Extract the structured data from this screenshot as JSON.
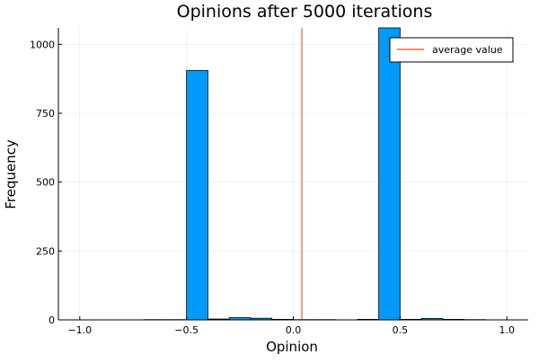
{
  "chart_data": {
    "type": "bar",
    "title": "Opinions after 5000 iterations",
    "xlabel": "Opinion",
    "ylabel": "Frequency",
    "xlim": [
      -1.1,
      1.1
    ],
    "ylim": [
      0,
      1060
    ],
    "x_ticks": [
      -1.0,
      -0.5,
      0.0,
      0.5,
      1.0
    ],
    "x_tick_labels": [
      "−1.0",
      "−0.5",
      "0.0",
      "0.5",
      "1.0"
    ],
    "y_ticks": [
      0,
      250,
      500,
      750,
      1000
    ],
    "y_tick_labels": [
      "0",
      "250",
      "500",
      "750",
      "1000"
    ],
    "grid": true,
    "bin_width": 0.1,
    "bins": [
      {
        "x0": -1.0,
        "x1": -0.9,
        "value": 0
      },
      {
        "x0": -0.9,
        "x1": -0.8,
        "value": 0
      },
      {
        "x0": -0.8,
        "x1": -0.7,
        "value": 0
      },
      {
        "x0": -0.7,
        "x1": -0.6,
        "value": 1
      },
      {
        "x0": -0.6,
        "x1": -0.5,
        "value": 1
      },
      {
        "x0": -0.5,
        "x1": -0.4,
        "value": 905
      },
      {
        "x0": -0.4,
        "x1": -0.3,
        "value": 3
      },
      {
        "x0": -0.3,
        "x1": -0.2,
        "value": 8
      },
      {
        "x0": -0.2,
        "x1": -0.1,
        "value": 6
      },
      {
        "x0": -0.1,
        "x1": 0.0,
        "value": 2
      },
      {
        "x0": 0.0,
        "x1": 0.1,
        "value": 1
      },
      {
        "x0": 0.1,
        "x1": 0.2,
        "value": 1
      },
      {
        "x0": 0.2,
        "x1": 0.3,
        "value": 0
      },
      {
        "x0": 0.3,
        "x1": 0.4,
        "value": 2
      },
      {
        "x0": 0.4,
        "x1": 0.5,
        "value": 1060
      },
      {
        "x0": 0.5,
        "x1": 0.6,
        "value": 2
      },
      {
        "x0": 0.6,
        "x1": 0.7,
        "value": 5
      },
      {
        "x0": 0.7,
        "x1": 0.8,
        "value": 2
      },
      {
        "x0": 0.8,
        "x1": 0.9,
        "value": 1
      },
      {
        "x0": 0.9,
        "x1": 1.0,
        "value": 0
      }
    ],
    "bar_color": "#009AFA",
    "average_line": {
      "name": "average value",
      "x": 0.04,
      "color": "#E26F46"
    },
    "legend": {
      "position": "top-right",
      "entries": [
        "average value"
      ]
    }
  }
}
